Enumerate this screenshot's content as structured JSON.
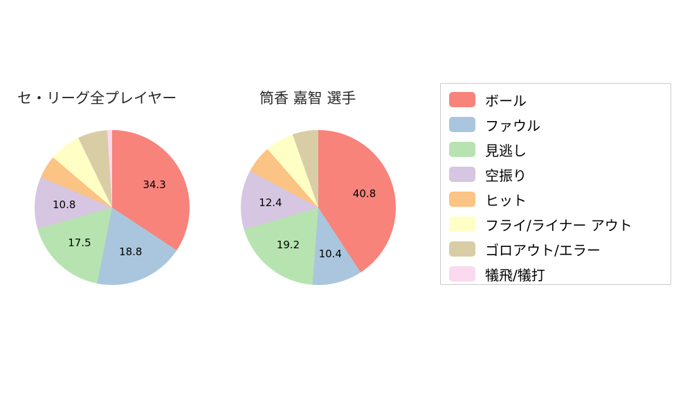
{
  "page": {
    "background": "#ffffff"
  },
  "legend": {
    "items": [
      {
        "label": "ボール",
        "color": "#f7837b"
      },
      {
        "label": "ファウル",
        "color": "#a9c6de"
      },
      {
        "label": "見逃し",
        "color": "#b7e3b1"
      },
      {
        "label": "空振り",
        "color": "#d6c6e1"
      },
      {
        "label": "ヒット",
        "color": "#fbc384"
      },
      {
        "label": "フライ/ライナー アウト",
        "color": "#ffffc5"
      },
      {
        "label": "ゴロアウト/エラー",
        "color": "#d9cda6"
      },
      {
        "label": "犠飛/犠打",
        "color": "#fbd9ef"
      }
    ]
  },
  "chart_data": [
    {
      "type": "pie",
      "title": "セ・リーグ全プレイヤー",
      "categories": [
        "ボール",
        "ファウル",
        "見逃し",
        "空振り",
        "ヒット",
        "フライ/ライナー アウト",
        "ゴロアウト/エラー",
        "犠飛/犠打"
      ],
      "values": [
        34.3,
        18.8,
        17.5,
        10.8,
        4.8,
        6.6,
        6.2,
        1.0
      ],
      "labels": [
        "34.3",
        "18.8",
        "17.5",
        "10.8",
        null,
        null,
        null,
        null
      ],
      "start_angle_deg": 0,
      "direction": "clockwise",
      "legend_position": "right"
    },
    {
      "type": "pie",
      "title": "筒香 嘉智  選手",
      "categories": [
        "ボール",
        "ファウル",
        "見逃し",
        "空振り",
        "ヒット",
        "フライ/ライナー アウト",
        "ゴロアウト/エラー",
        "犠飛/犠打"
      ],
      "values": [
        40.8,
        10.4,
        19.2,
        12.4,
        5.8,
        6.0,
        5.4,
        0.0
      ],
      "labels": [
        "40.8",
        "10.4",
        "19.2",
        "12.4",
        null,
        null,
        null,
        null
      ],
      "start_angle_deg": 0,
      "direction": "clockwise",
      "legend_position": "right"
    }
  ]
}
